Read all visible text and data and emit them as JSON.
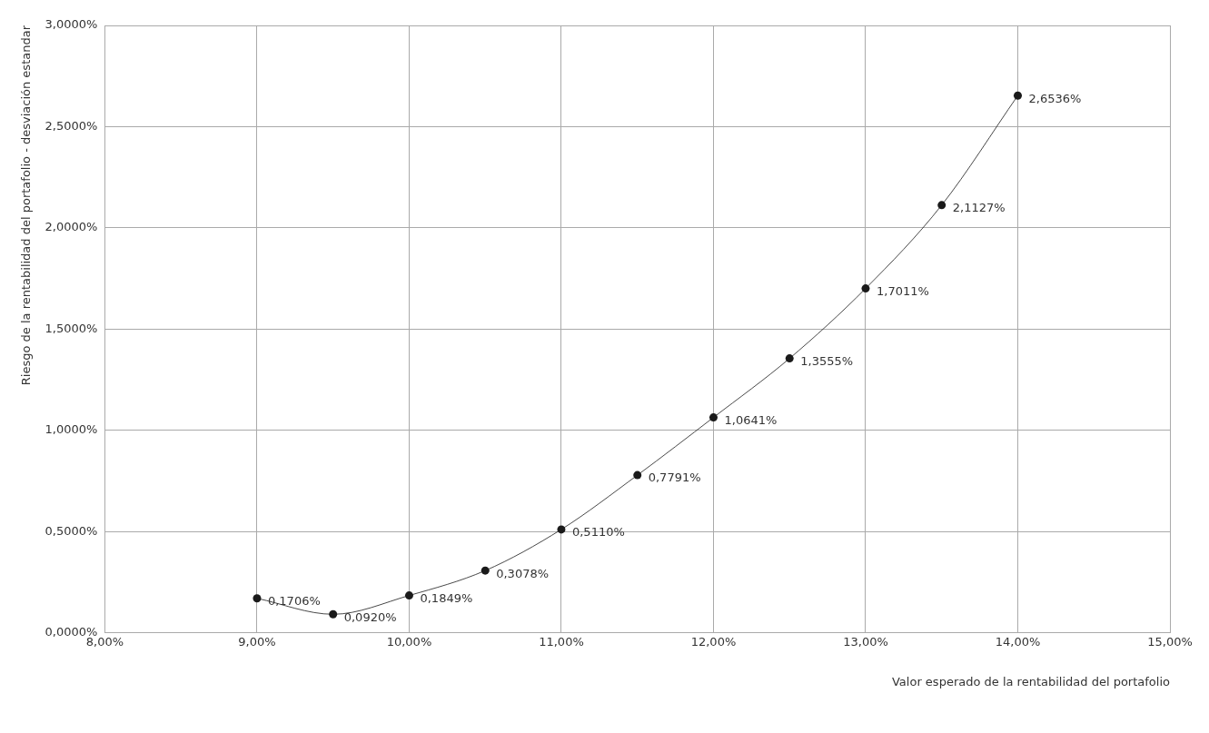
{
  "chart_data": {
    "type": "line",
    "xlabel": "Valor esperado de la rentabilidad del portafolio",
    "ylabel": "Riesgo de la rentabilidad del portafolio - desviación estandar",
    "x": [
      9,
      9.5,
      10,
      10.5,
      11,
      11.5,
      12,
      12.5,
      13,
      13.5,
      14
    ],
    "series": [
      {
        "color": "#1a1a1a",
        "values": [
          0.1706,
          0.092,
          0.1849,
          0.3078,
          0.511,
          0.7791,
          1.0641,
          1.3555,
          1.7011,
          2.1127,
          2.6536
        ],
        "value_labels": [
          "0,1706%",
          "0,0920%",
          "0,1849%",
          "0,3078%",
          "0,5110%",
          "0,7791%",
          "1,0641%",
          "1,3555%",
          "1,7011%",
          "2,1127%",
          "2,6536%"
        ]
      }
    ],
    "xlim": [
      8,
      15
    ],
    "xticks": [
      {
        "value": 8,
        "label": "8,00%"
      },
      {
        "value": 9,
        "label": "9,00%"
      },
      {
        "value": 10,
        "label": "10,00%"
      },
      {
        "value": 11,
        "label": "11,00%"
      },
      {
        "value": 12,
        "label": "12,00%"
      },
      {
        "value": 13,
        "label": "13,00%"
      },
      {
        "value": 14,
        "label": "14,00%"
      },
      {
        "value": 15,
        "label": "15,00%"
      }
    ],
    "ylim": [
      0,
      3
    ],
    "yticks": [
      {
        "value": 0,
        "label": "0,0000%"
      },
      {
        "value": 0.5,
        "label": "0,5000%"
      },
      {
        "value": 1,
        "label": "1,0000%"
      },
      {
        "value": 1.5,
        "label": "1,5000%"
      },
      {
        "value": 2,
        "label": "2,0000%"
      },
      {
        "value": 2.5,
        "label": "2,5000%"
      },
      {
        "value": 3,
        "label": "3,0000%"
      }
    ],
    "grid": true,
    "legend": false,
    "marker": "circle",
    "line_style": "solid"
  }
}
